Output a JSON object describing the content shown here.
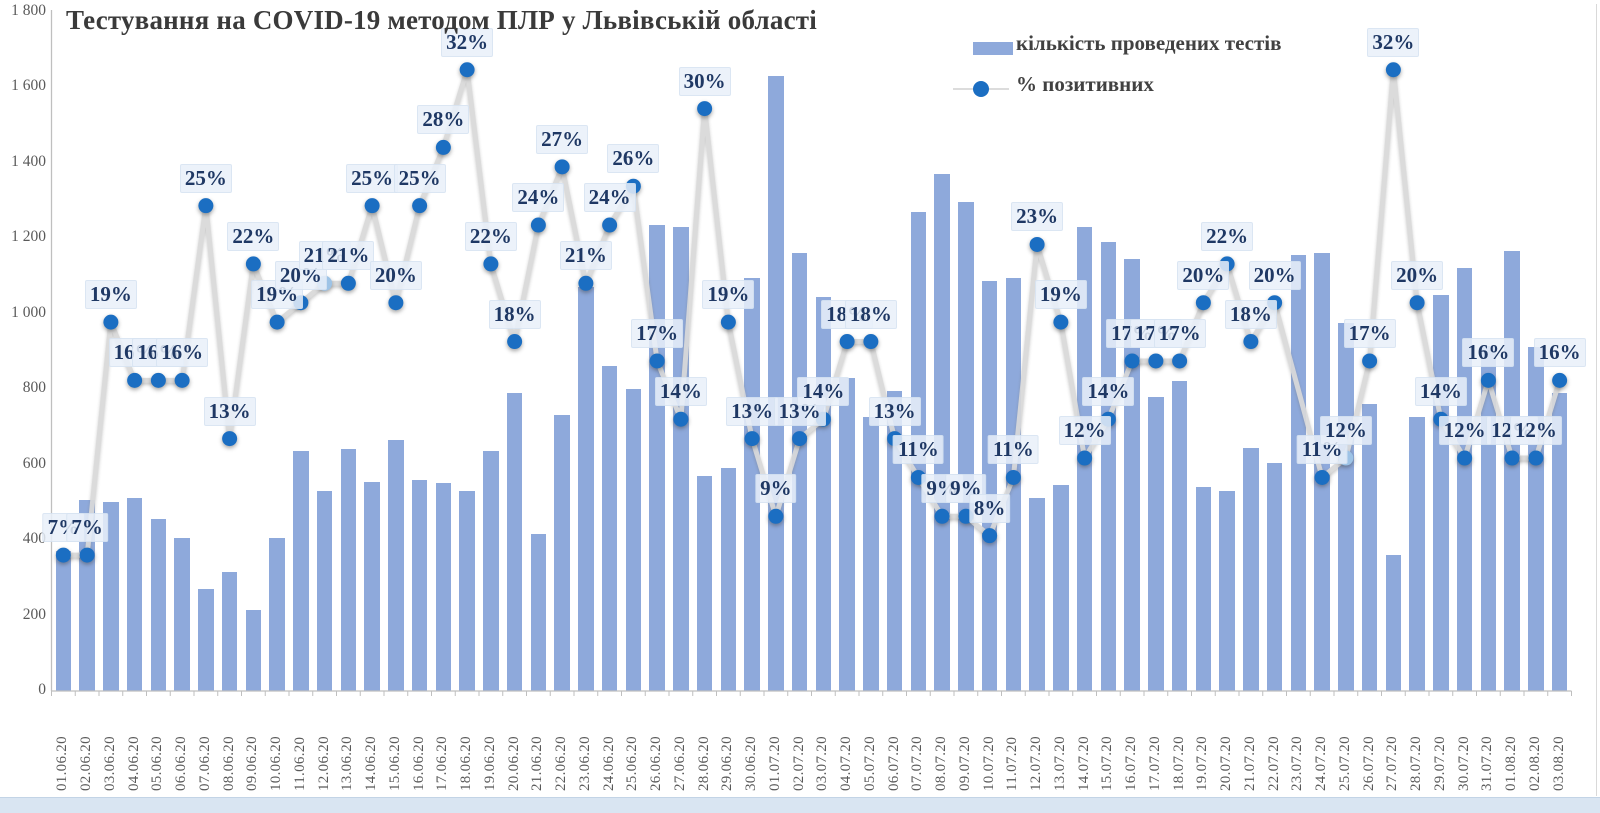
{
  "title": "Тестування на COVID-19 методом ПЛР у Львівській області",
  "legend": {
    "bars_label": "кількість проведених тестів",
    "dots_label": "% позитивних"
  },
  "colors": {
    "bar": "#8ea9db",
    "dot": "#1b6ec2",
    "dot_highlight": "#9dc3e6",
    "line": "#d9d9d9",
    "pct_label_text": "#1f3864",
    "axis_text": "#595959",
    "title_text": "#3a3a3a",
    "legend_text": "#414141"
  },
  "y_axis": {
    "max": 1800,
    "ticks": [
      {
        "label": "1 800",
        "value": 1800
      },
      {
        "label": "1 600",
        "value": 1600
      },
      {
        "label": "1 400",
        "value": 1400
      },
      {
        "label": "1 200",
        "value": 1200
      },
      {
        "label": "1 000",
        "value": 1000
      },
      {
        "label": "800",
        "value": 800
      },
      {
        "label": "600",
        "value": 600
      },
      {
        "label": "400",
        "value": 400
      },
      {
        "label": "200",
        "value": 200
      },
      {
        "label": "0",
        "value": 0
      }
    ]
  },
  "chart_data": {
    "type": "bar",
    "series": [
      {
        "name": "кількість проведених тестів",
        "type": "bar",
        "axis": "primary"
      },
      {
        "name": "% позитивних",
        "type": "line-scatter",
        "axis": "secondary",
        "unit": "%"
      }
    ],
    "secondary_axis_max_pct": 35,
    "highlighted_pct_points": [
      "12.06.20",
      "25.07.20"
    ],
    "points": [
      {
        "date": "01.06.20",
        "tests": 370,
        "pct": 7
      },
      {
        "date": "02.06.20",
        "tests": 505,
        "pct": 7
      },
      {
        "date": "03.06.20",
        "tests": 500,
        "pct": 19
      },
      {
        "date": "04.06.20",
        "tests": 510,
        "pct": 16
      },
      {
        "date": "05.06.20",
        "tests": 455,
        "pct": 16
      },
      {
        "date": "06.06.20",
        "tests": 405,
        "pct": 16
      },
      {
        "date": "07.06.20",
        "tests": 270,
        "pct": 25
      },
      {
        "date": "08.06.20",
        "tests": 315,
        "pct": 13
      },
      {
        "date": "09.06.20",
        "tests": 215,
        "pct": 22
      },
      {
        "date": "10.06.20",
        "tests": 405,
        "pct": 19
      },
      {
        "date": "11.06.20",
        "tests": 635,
        "pct": 20
      },
      {
        "date": "12.06.20",
        "tests": 530,
        "pct": 21
      },
      {
        "date": "13.06.20",
        "tests": 640,
        "pct": 21
      },
      {
        "date": "14.06.20",
        "tests": 555,
        "pct": 25
      },
      {
        "date": "15.06.20",
        "tests": 665,
        "pct": 20
      },
      {
        "date": "16.06.20",
        "tests": 560,
        "pct": 25
      },
      {
        "date": "17.06.20",
        "tests": 550,
        "pct": 28
      },
      {
        "date": "18.06.20",
        "tests": 530,
        "pct": 32
      },
      {
        "date": "19.06.20",
        "tests": 635,
        "pct": 22
      },
      {
        "date": "20.06.20",
        "tests": 790,
        "pct": 18
      },
      {
        "date": "21.06.20",
        "tests": 415,
        "pct": 24
      },
      {
        "date": "22.06.20",
        "tests": 730,
        "pct": 27
      },
      {
        "date": "23.06.20",
        "tests": 1070,
        "pct": 21
      },
      {
        "date": "24.06.20",
        "tests": 860,
        "pct": 24
      },
      {
        "date": "25.06.20",
        "tests": 800,
        "pct": 26
      },
      {
        "date": "26.06.20",
        "tests": 1235,
        "pct": 17
      },
      {
        "date": "27.06.20",
        "tests": 1230,
        "pct": 14
      },
      {
        "date": "28.06.20",
        "tests": 570,
        "pct": 30
      },
      {
        "date": "29.06.20",
        "tests": 590,
        "pct": 19
      },
      {
        "date": "30.06.20",
        "tests": 1095,
        "pct": 13
      },
      {
        "date": "01.07.20",
        "tests": 1630,
        "pct": 9
      },
      {
        "date": "02.07.20",
        "tests": 1160,
        "pct": 13
      },
      {
        "date": "03.07.20",
        "tests": 1045,
        "pct": 14
      },
      {
        "date": "04.07.20",
        "tests": 830,
        "pct": 18
      },
      {
        "date": "05.07.20",
        "tests": 725,
        "pct": 18
      },
      {
        "date": "06.07.20",
        "tests": 795,
        "pct": 13
      },
      {
        "date": "07.07.20",
        "tests": 1270,
        "pct": 11
      },
      {
        "date": "08.07.20",
        "tests": 1370,
        "pct": 9
      },
      {
        "date": "09.07.20",
        "tests": 1295,
        "pct": 9
      },
      {
        "date": "10.07.20",
        "tests": 1085,
        "pct": 8
      },
      {
        "date": "11.07.20",
        "tests": 1095,
        "pct": 11
      },
      {
        "date": "12.07.20",
        "tests": 510,
        "pct": 23
      },
      {
        "date": "13.07.20",
        "tests": 545,
        "pct": 19
      },
      {
        "date": "14.07.20",
        "tests": 1230,
        "pct": 12
      },
      {
        "date": "15.07.20",
        "tests": 1190,
        "pct": 14
      },
      {
        "date": "16.07.20",
        "tests": 1145,
        "pct": 17
      },
      {
        "date": "17.07.20",
        "tests": 780,
        "pct": 17
      },
      {
        "date": "18.07.20",
        "tests": 820,
        "pct": 17
      },
      {
        "date": "19.07.20",
        "tests": 540,
        "pct": 20
      },
      {
        "date": "20.07.20",
        "tests": 530,
        "pct": 22
      },
      {
        "date": "21.07.20",
        "tests": 645,
        "pct": 18
      },
      {
        "date": "22.07.20",
        "tests": 605,
        "pct": 20
      },
      {
        "date": "23.07.20",
        "tests": 1155,
        "pct": null
      },
      {
        "date": "24.07.20",
        "tests": 1160,
        "pct": 11
      },
      {
        "date": "25.07.20",
        "tests": 975,
        "pct": 12
      },
      {
        "date": "26.07.20",
        "tests": 760,
        "pct": 17
      },
      {
        "date": "27.07.20",
        "tests": 360,
        "pct": 32
      },
      {
        "date": "28.07.20",
        "tests": 725,
        "pct": 20
      },
      {
        "date": "29.07.20",
        "tests": 1050,
        "pct": 14
      },
      {
        "date": "30.07.20",
        "tests": 1120,
        "pct": 12
      },
      {
        "date": "31.07.20",
        "tests": 915,
        "pct": 16
      },
      {
        "date": "01.08.20",
        "tests": 1165,
        "pct": 12
      },
      {
        "date": "02.08.20",
        "tests": 910,
        "pct": 12
      },
      {
        "date": "03.08.20",
        "tests": 790,
        "pct": 16
      }
    ]
  }
}
